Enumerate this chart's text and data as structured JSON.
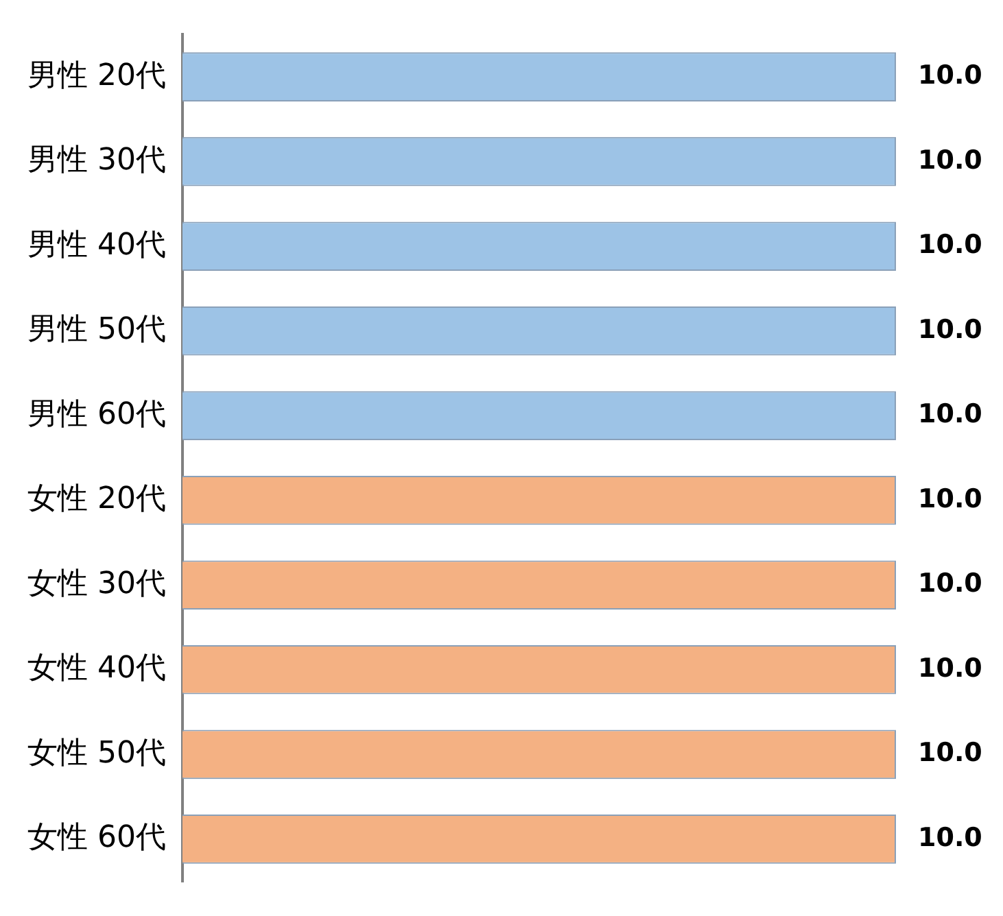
{
  "chart_data": {
    "type": "bar",
    "orientation": "horizontal",
    "categories": [
      "男性 20代",
      "男性 30代",
      "男性 40代",
      "男性 50代",
      "男性 60代",
      "女性 20代",
      "女性 30代",
      "女性 40代",
      "女性 50代",
      "女性 60代"
    ],
    "values": [
      10,
      10,
      10,
      10,
      10,
      10,
      10,
      10,
      10,
      10
    ],
    "colors": [
      "#9dc3e6",
      "#9dc3e6",
      "#9dc3e6",
      "#9dc3e6",
      "#9dc3e6",
      "#f4b183",
      "#f4b183",
      "#f4b183",
      "#f4b183",
      "#f4b183"
    ],
    "value_labels": [
      "10.0",
      "10.0",
      "10.0",
      "10.0",
      "10.0",
      "10.0",
      "10.0",
      "10.0",
      "10.0",
      "10.0"
    ],
    "tick_labels": "y",
    "grid": false,
    "legend": false
  }
}
